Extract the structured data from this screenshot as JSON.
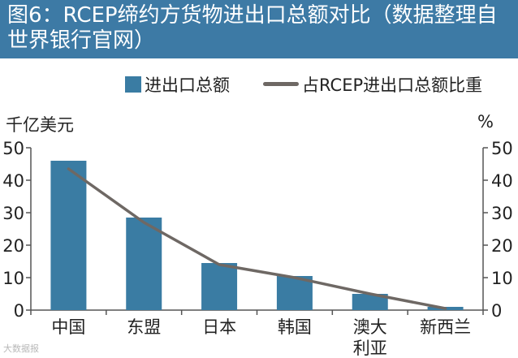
{
  "title": "图6：RCEP缔约方货物进出口总额对比（数据整理自世界银行官网）",
  "legend": {
    "bar_label": "进出口总额",
    "line_label": "占RCEP进出口总额比重"
  },
  "units": {
    "left": "千亿美元",
    "right": "%"
  },
  "watermark": "大数据报",
  "colors": {
    "header_bg": "#3d7aa5",
    "bar": "#3a7ca3",
    "line": "#6e6864"
  },
  "chart_data": {
    "type": "bar",
    "categories": [
      "中国",
      "东盟",
      "日本",
      "韩国",
      "澳大利亚",
      "新西兰"
    ],
    "category_lines": [
      [
        "中国"
      ],
      [
        "东盟"
      ],
      [
        "日本"
      ],
      [
        "韩国"
      ],
      [
        "澳大",
        "利亚"
      ],
      [
        "新西兰"
      ]
    ],
    "series": [
      {
        "name": "进出口总额",
        "type": "bar",
        "axis": "left",
        "values": [
          46,
          28.5,
          14.5,
          10.5,
          5,
          1
        ]
      },
      {
        "name": "占RCEP进出口总额比重",
        "type": "line",
        "axis": "right",
        "values": [
          43.5,
          27,
          14,
          10,
          5,
          0.5
        ]
      }
    ],
    "ylim_left": [
      0,
      50
    ],
    "ylim_right": [
      0,
      50
    ],
    "yticks_left": [
      0,
      10,
      20,
      30,
      40,
      50
    ],
    "yticks_right": [
      0,
      10,
      20,
      30,
      40,
      50
    ],
    "ylabel_left": "千亿美元",
    "ylabel_right": "%",
    "grid": false,
    "legend_position": "top"
  }
}
